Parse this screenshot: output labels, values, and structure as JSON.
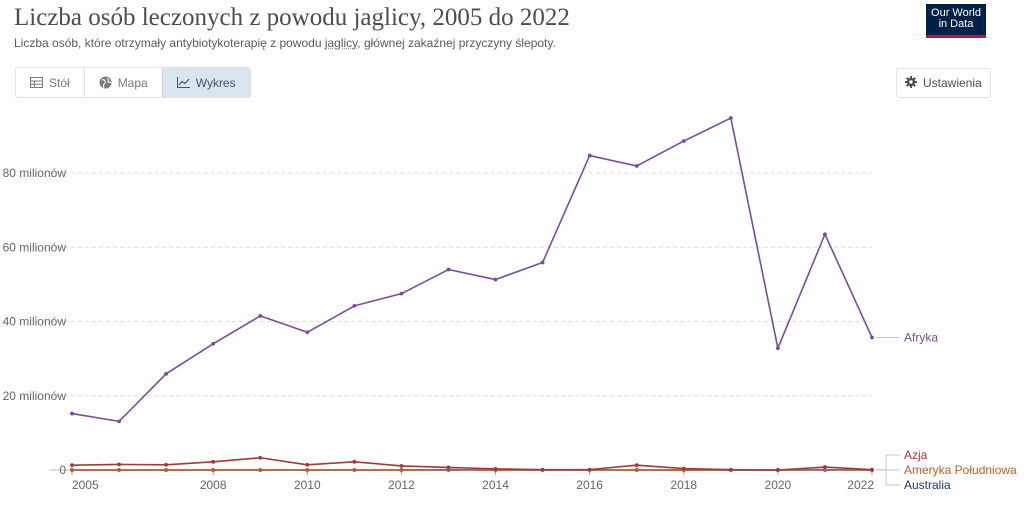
{
  "header": {
    "title": "Liczba osób leczonych z powodu jaglicy, 2005 do 2022",
    "subtitle_before": "Liczba osób, które otrzymały antybiotykoterapię z powodu ",
    "subtitle_link": "jaglicy",
    "subtitle_after": ", głównej zakaźnej przyczyny ślepoty.",
    "logo_line1": "Our World",
    "logo_line2": "in Data"
  },
  "tabs": [
    {
      "label": "Stół",
      "icon": "table-icon",
      "active": false
    },
    {
      "label": "Mapa",
      "icon": "globe-icon",
      "active": false
    },
    {
      "label": "Wykres",
      "icon": "line-chart-icon",
      "active": true
    }
  ],
  "settings": {
    "label": "Ustawienia",
    "icon": "gear-icon"
  },
  "colors": {
    "Afryka": "#7a4c9e",
    "Azja": "#9e3a3a",
    "Ameryka Południowa": "#b5602c",
    "Australia": "#1f3a78",
    "grid": "#dcdcdc",
    "axis_text": "#666666"
  },
  "chart_data": {
    "type": "line",
    "title": "",
    "xlabel": "",
    "ylabel": "",
    "xlim": [
      2005,
      2022
    ],
    "ylim": [
      0,
      97000000
    ],
    "grid": true,
    "legend": "right (line-end labels)",
    "x_ticks": [
      2005,
      2008,
      2010,
      2012,
      2014,
      2016,
      2018,
      2020,
      2022
    ],
    "y_ticks": [
      {
        "value": 0,
        "label": "0"
      },
      {
        "value": 20000000,
        "label": "20 milionów"
      },
      {
        "value": 40000000,
        "label": "40 milionów"
      },
      {
        "value": 60000000,
        "label": "60 milionów"
      },
      {
        "value": 80000000,
        "label": "80 milionów"
      }
    ],
    "x": [
      2005,
      2006,
      2007,
      2008,
      2009,
      2010,
      2011,
      2012,
      2013,
      2014,
      2015,
      2016,
      2017,
      2018,
      2019,
      2020,
      2021,
      2022
    ],
    "series": [
      {
        "name": "Afryka",
        "values": [
          15200000,
          13100000,
          25900000,
          34000000,
          41500000,
          37100000,
          44200000,
          47500000,
          54000000,
          51300000,
          55900000,
          84700000,
          81900000,
          88600000,
          94800000,
          32800000,
          63500000,
          35700000
        ]
      },
      {
        "name": "Azja",
        "values": [
          1300000,
          1500000,
          1400000,
          2200000,
          3300000,
          1400000,
          2200000,
          1100000,
          700000,
          300000,
          100000,
          100000,
          1300000,
          400000,
          100000,
          0,
          800000,
          100000
        ]
      },
      {
        "name": "Ameryka Południowa",
        "values": [
          0,
          0,
          0,
          0,
          0,
          0,
          0,
          0,
          100000,
          0,
          0,
          0,
          0,
          0,
          0,
          0,
          100000,
          0
        ]
      },
      {
        "name": "Australia",
        "values": [
          0,
          0,
          0,
          0,
          0,
          0,
          0,
          0,
          0,
          0,
          0,
          0,
          0,
          0,
          0,
          0,
          0,
          0
        ]
      }
    ]
  }
}
